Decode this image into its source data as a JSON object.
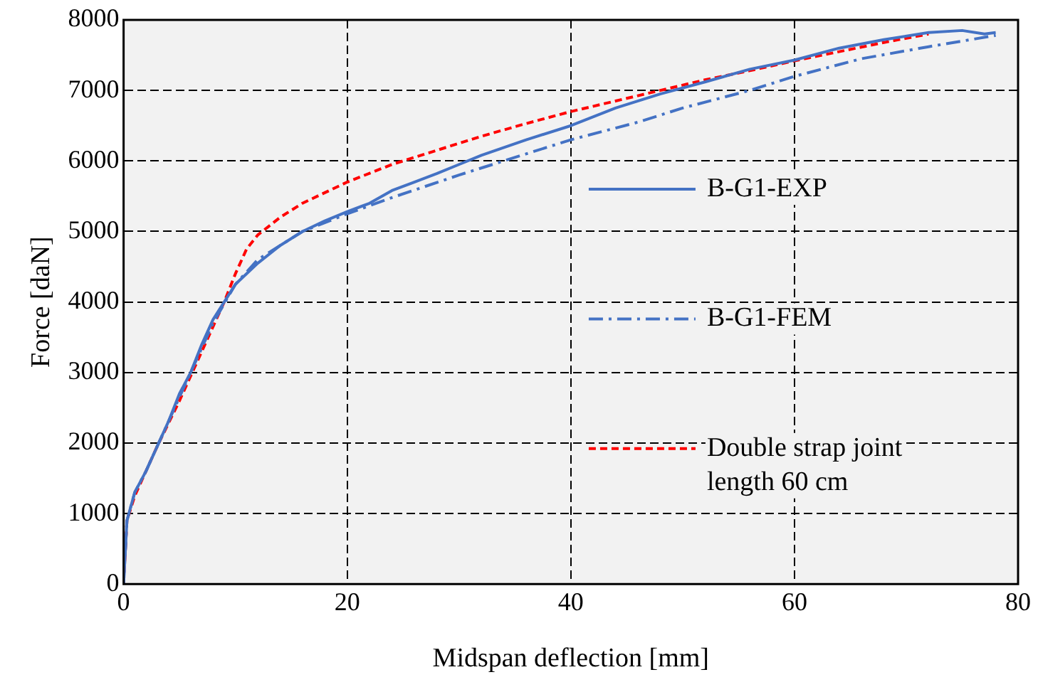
{
  "chart_data": {
    "type": "line",
    "xlabel": "Midspan deflection [mm]",
    "ylabel": "Force [daN]",
    "xlim": [
      0,
      80
    ],
    "xticks": [
      0,
      20,
      40,
      60,
      80
    ],
    "ylim": [
      0,
      8000
    ],
    "yticks": [
      0,
      1000,
      2000,
      3000,
      4000,
      5000,
      6000,
      7000,
      8000
    ],
    "grid": true,
    "legend": "right",
    "marker": "none",
    "series": [
      {
        "name": "B-G1-EXP",
        "color": "#4472c4",
        "line_style": "solid",
        "x": [
          0,
          0.3,
          1,
          2,
          3,
          4,
          5,
          6,
          7,
          8,
          9,
          10,
          12,
          14,
          16,
          18,
          20,
          22,
          24,
          26,
          28,
          30,
          32,
          36,
          40,
          44,
          48,
          52,
          56,
          60,
          64,
          68,
          72,
          75,
          77,
          78
        ],
        "values": [
          0,
          900,
          1300,
          1600,
          1950,
          2300,
          2700,
          3000,
          3400,
          3750,
          4000,
          4250,
          4550,
          4800,
          5000,
          5150,
          5280,
          5400,
          5580,
          5700,
          5820,
          5950,
          6080,
          6300,
          6500,
          6750,
          6950,
          7120,
          7300,
          7430,
          7600,
          7720,
          7820,
          7850,
          7800,
          7820
        ]
      },
      {
        "name": "B-G1-FEM",
        "color": "#4472c4",
        "line_style": "dashdot",
        "x": [
          0,
          0.3,
          1,
          2,
          4,
          6,
          8,
          10,
          12,
          16,
          20,
          24,
          30,
          36,
          40,
          46,
          50,
          56,
          60,
          66,
          72,
          78
        ],
        "values": [
          0,
          900,
          1300,
          1600,
          2300,
          3000,
          3700,
          4250,
          4600,
          5000,
          5250,
          5480,
          5800,
          6100,
          6300,
          6550,
          6750,
          7000,
          7200,
          7450,
          7620,
          7780
        ]
      },
      {
        "name": "Double strap joint length 60 cm",
        "color": "#ff0000",
        "line_style": "dashed",
        "x": [
          0,
          0.3,
          1,
          3,
          5,
          7,
          9,
          10,
          11,
          12,
          14,
          16,
          18,
          20,
          24,
          28,
          32,
          36,
          40,
          44,
          48,
          52,
          56,
          60,
          64,
          68,
          72
        ],
        "values": [
          0,
          900,
          1250,
          1950,
          2600,
          3300,
          4000,
          4400,
          4750,
          4950,
          5200,
          5400,
          5550,
          5700,
          5950,
          6150,
          6350,
          6530,
          6700,
          6850,
          7000,
          7150,
          7280,
          7420,
          7550,
          7680,
          7800
        ]
      }
    ]
  }
}
